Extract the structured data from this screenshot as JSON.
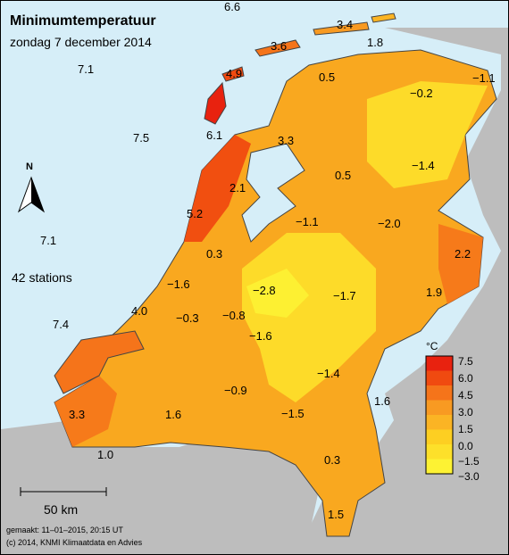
{
  "title": "Minimumtemperatuur",
  "subtitle": "zondag 7 december 2014",
  "stations_label": "42 stations",
  "north_label": "N",
  "scale_label": "50 km",
  "made_label": "gemaakt: 11–01–2015, 20:15 UT",
  "copyright": "(c) 2014, KNMI Klimaatdata en Advies",
  "legend": {
    "unit": "°C",
    "ticks": [
      "7.5",
      "6.0",
      "4.5",
      "3.0",
      "1.5",
      "0.0",
      "−1.5",
      "−3.0"
    ],
    "colors": [
      "#e8220f",
      "#f04a10",
      "#f5741a",
      "#f89a22",
      "#fbb424",
      "#fdcf22",
      "#fde02a",
      "#fdf233"
    ]
  },
  "sea_values": [
    "6.6",
    "7.1",
    "7.5",
    "7.1",
    "7.4"
  ],
  "land_values": [
    "3.4",
    "1.8",
    "3.6",
    "4.9",
    "0.5",
    "−0.2",
    "−1.1",
    "6.1",
    "3.3",
    "−1.4",
    "0.5",
    "2.1",
    "5.2",
    "−1.1",
    "−2.0",
    "2.2",
    "0.3",
    "−1.6",
    "−2.8",
    "−1.7",
    "1.9",
    "4.0",
    "−0.3",
    "−0.8",
    "−1.6",
    "−1.4",
    "−0.9",
    "1.6",
    "3.3",
    "1.6",
    "−1.5",
    "1.0",
    "0.3",
    "1.5"
  ],
  "colors": {
    "sea": "#d6eef8",
    "land_outside": "#bdbdbd",
    "frame": "#000000"
  }
}
